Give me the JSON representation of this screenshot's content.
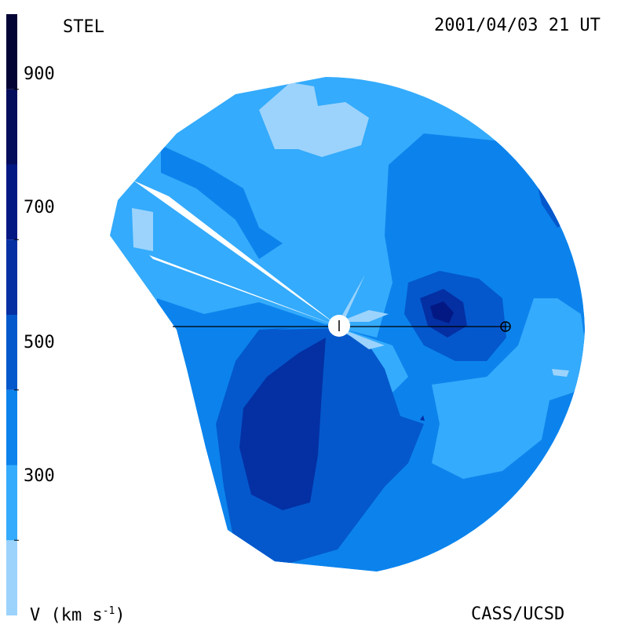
{
  "header": {
    "left_title": "STEL",
    "right_title": "2001/04/03 21 UT"
  },
  "footer": {
    "left": "V (km s",
    "left_sup": "-1",
    "left_close": ")",
    "right": "CASS/UCSD"
  },
  "colorbar": {
    "ticks": [
      "900",
      "700",
      "500",
      "300"
    ],
    "tick_values": [
      900,
      700,
      500,
      300
    ],
    "bands": [
      {
        "from": 200,
        "to": 300,
        "color": "#9cd3fc"
      },
      {
        "from": 300,
        "to": 400,
        "color": "#34abfc"
      },
      {
        "from": 400,
        "to": 500,
        "color": "#0c83ec"
      },
      {
        "from": 500,
        "to": 600,
        "color": "#0458cc"
      },
      {
        "from": 600,
        "to": 700,
        "color": "#0430a4"
      },
      {
        "from": 700,
        "to": 800,
        "color": "#041884"
      },
      {
        "from": 800,
        "to": 900,
        "color": "#040c5c"
      },
      {
        "from": 900,
        "to": 1000,
        "color": "#040434"
      }
    ],
    "range": [
      200,
      1000
    ]
  },
  "chart_data": {
    "type": "heatmap",
    "quantity": "solar wind velocity",
    "unit": "km s^-1",
    "range": [
      200,
      1000
    ],
    "date": "2001/04/03 21 UT",
    "source": "STEL",
    "credit": "CASS/UCSD",
    "regions": [
      {
        "color": "#34abfc",
        "level": 350
      },
      {
        "color": "#0c83ec",
        "level": 450
      },
      {
        "color": "#0458cc",
        "level": 550
      },
      {
        "color": "#0430a4",
        "level": 650
      },
      {
        "color": "#041884",
        "level": 750
      }
    ],
    "markers": [
      "sun",
      "earth"
    ]
  }
}
